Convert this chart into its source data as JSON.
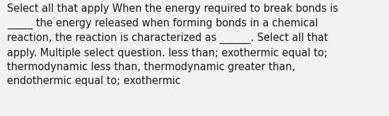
{
  "text": "Select all that apply When the energy required to break bonds is\n_____ the energy released when forming bonds in a chemical\nreaction, the reaction is characterized as ______. Select all that\napply. Multiple select question. less than; exothermic equal to;\nthermodynamic less than, thermodynamic greater than,\nendothermic equal to; exothermic",
  "background_color": "#f2f2f2",
  "text_color": "#1a1a1a",
  "font_size": 10.5,
  "fig_width": 5.58,
  "fig_height": 1.67,
  "dpi": 100
}
